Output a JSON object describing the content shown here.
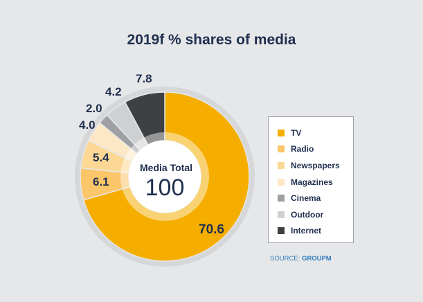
{
  "chart_data": {
    "type": "pie",
    "title": "2019f % shares of media",
    "center_label": "Media Total",
    "center_value": "100",
    "slices": [
      {
        "name": "TV",
        "value": 70.6,
        "label": "70.6",
        "color": "#f5ae00"
      },
      {
        "name": "Radio",
        "value": 6.1,
        "label": "6.1",
        "color": "#fbc56a"
      },
      {
        "name": "Newspapers",
        "value": 5.4,
        "label": "5.4",
        "color": "#fcd894"
      },
      {
        "name": "Magazines",
        "value": 4.0,
        "label": "4.0",
        "color": "#fde8c6"
      },
      {
        "name": "Cinema",
        "value": 2.0,
        "label": "2.0",
        "color": "#9ea0a3"
      },
      {
        "name": "Outdoor",
        "value": 4.2,
        "label": "4.2",
        "color": "#cfd0d2"
      },
      {
        "name": "Internet",
        "value": 7.8,
        "label": "7.8",
        "color": "#3f4043"
      }
    ],
    "legend_position": "right"
  },
  "source": {
    "prefix": "SOURCE: ",
    "name": "GROUPM"
  }
}
